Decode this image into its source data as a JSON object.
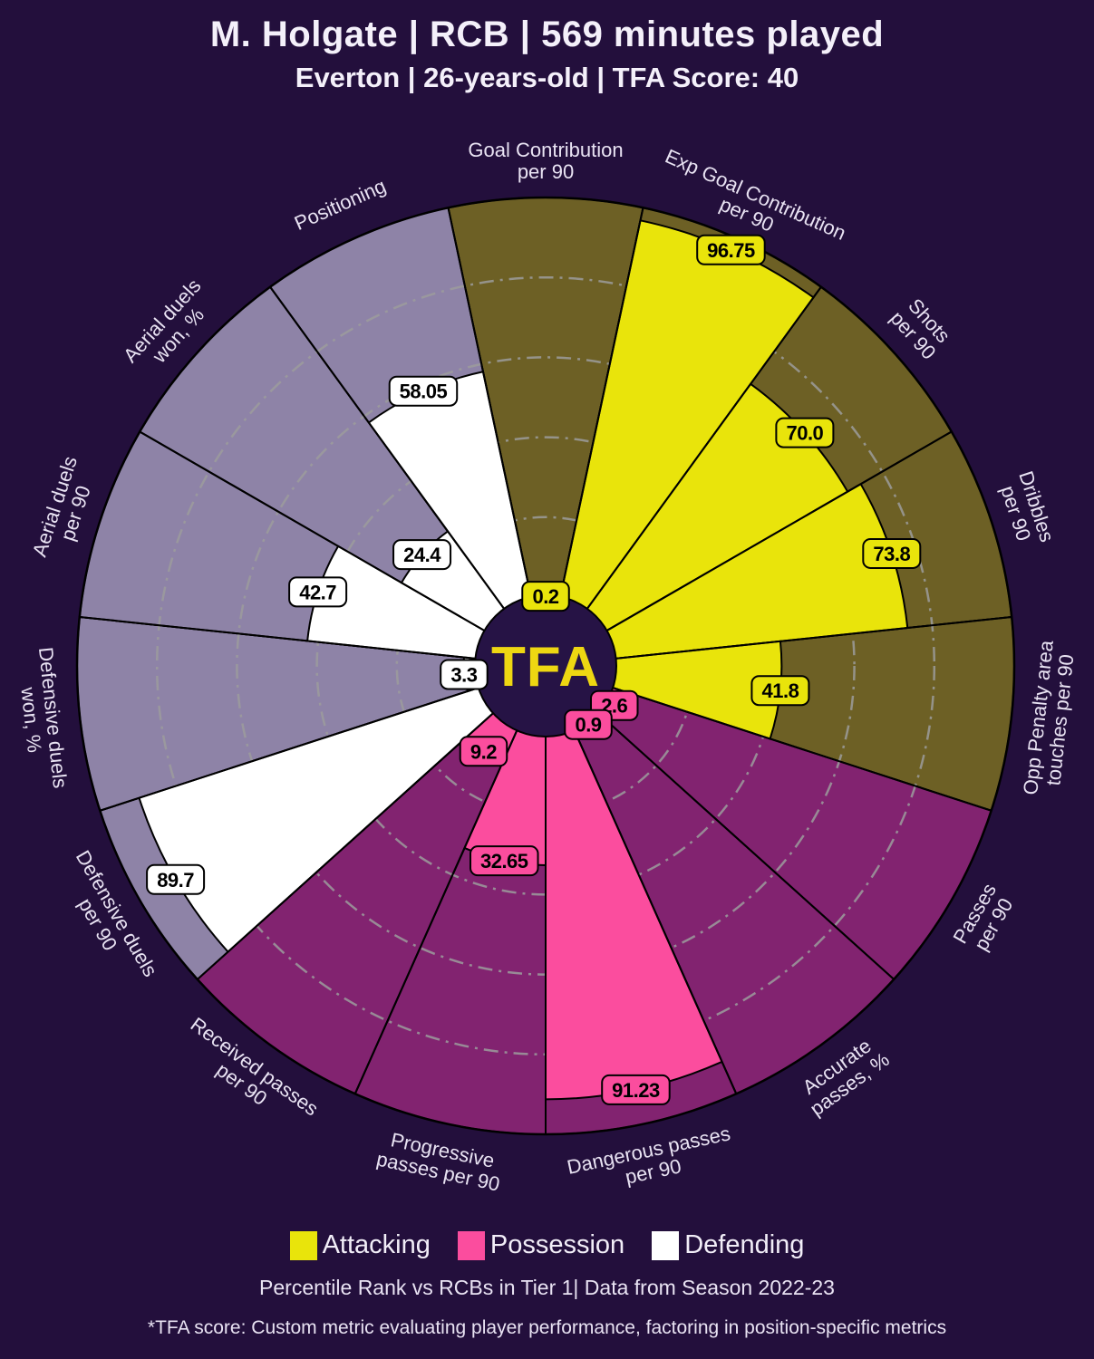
{
  "header": {
    "title": "M. Holgate | RCB | 569 minutes played",
    "subtitle": "Everton | 26-years-old | TFA Score: 40"
  },
  "center_logo": "TFA",
  "colors": {
    "background": "#230f3c",
    "center_circle": "#261345",
    "logo_text": "#eed712",
    "slice_outline": "#000000",
    "gridline": "#9c9c9c",
    "label_text": "#e9e3f3"
  },
  "chart_data": {
    "type": "pizza-radar",
    "units": "percentile",
    "rings": [
      20,
      40,
      60,
      80
    ],
    "axis_range": [
      0,
      100
    ],
    "groups": [
      {
        "id": "attacking",
        "name": "Attacking",
        "fill": "#e9e40b",
        "bg": "#6d6025"
      },
      {
        "id": "possession",
        "name": "Possession",
        "fill": "#fb4d9e",
        "bg": "#822370"
      },
      {
        "id": "defending",
        "name": "Defending",
        "fill": "#ffffff",
        "bg": "#8e83a7"
      }
    ],
    "slices": [
      {
        "metric": [
          "Goal Contribution",
          "per 90"
        ],
        "value": 0.2,
        "display": "0.2",
        "group": "attacking"
      },
      {
        "metric": [
          "Exp Goal Contribution",
          "per 90"
        ],
        "value": 96.75,
        "display": "96.75",
        "group": "attacking"
      },
      {
        "metric": [
          "Shots",
          "per 90"
        ],
        "value": 70.0,
        "display": "70.0",
        "group": "attacking"
      },
      {
        "metric": [
          "Dribbles",
          "per 90"
        ],
        "value": 73.8,
        "display": "73.8",
        "group": "attacking"
      },
      {
        "metric": [
          "Opp Penalty area",
          "touches per 90"
        ],
        "value": 41.8,
        "display": "41.8",
        "group": "attacking"
      },
      {
        "metric": [
          "Passes",
          "per 90"
        ],
        "value": 2.6,
        "display": "2.6",
        "group": "possession"
      },
      {
        "metric": [
          "Accurate",
          "passes, %"
        ],
        "value": 0.9,
        "display": "0.9",
        "group": "possession"
      },
      {
        "metric": [
          "Dangerous passes",
          "per 90"
        ],
        "value": 91.23,
        "display": "91.23",
        "group": "possession"
      },
      {
        "metric": [
          "Progressive",
          "passes per 90"
        ],
        "value": 32.65,
        "display": "32.65",
        "group": "possession"
      },
      {
        "metric": [
          "Received passes",
          "per 90"
        ],
        "value": 9.2,
        "display": "9.2",
        "group": "possession"
      },
      {
        "metric": [
          "Defensive duels",
          "per 90"
        ],
        "value": 89.7,
        "display": "89.7",
        "group": "defending"
      },
      {
        "metric": [
          "Defensive duels",
          "won, %"
        ],
        "value": 3.3,
        "display": "3.3",
        "group": "defending"
      },
      {
        "metric": [
          "Aerial duels",
          "per 90"
        ],
        "value": 42.7,
        "display": "42.7",
        "group": "defending"
      },
      {
        "metric": [
          "Aerial duels",
          "won, %"
        ],
        "value": 24.4,
        "display": "24.4",
        "group": "defending"
      },
      {
        "metric": [
          "Positioning"
        ],
        "value": 58.05,
        "display": "58.05",
        "group": "defending"
      }
    ]
  },
  "legend": {
    "items": [
      {
        "label": "Attacking"
      },
      {
        "label": "Possession"
      },
      {
        "label": "Defending"
      }
    ]
  },
  "caption": "Percentile Rank vs RCBs in Tier 1| Data from Season 2022-23",
  "footnote": "*TFA score: Custom metric evaluating player performance, factoring in position-specific metrics"
}
